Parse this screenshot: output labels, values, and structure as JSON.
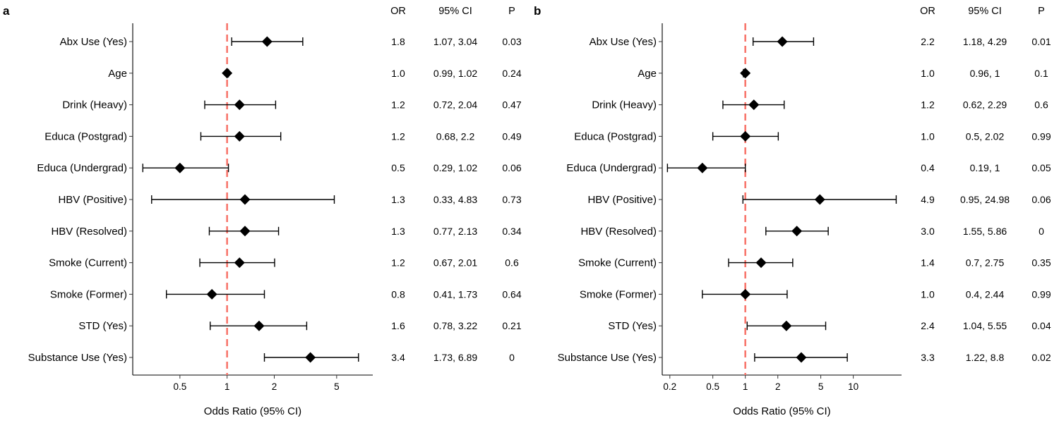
{
  "chart_data": [
    {
      "type": "forest",
      "panel_label": "a",
      "xlabel": "Odds Ratio (95% CI)",
      "xscale": "log",
      "xlim": [
        0.25,
        8.5
      ],
      "xticks": [
        0.5,
        1,
        2,
        5
      ],
      "xtick_labels": [
        "0.5",
        "1",
        "2",
        "5"
      ],
      "reference_line": 1,
      "reference_color": "#F8766D",
      "columns": {
        "or": "OR",
        "ci": "95% CI",
        "p": "P"
      },
      "rows": [
        {
          "label": "Abx Use (Yes)",
          "or": 1.8,
          "lo": 1.07,
          "hi": 3.04,
          "or_text": "1.8",
          "ci_text": "1.07, 3.04",
          "p_text": "0.03"
        },
        {
          "label": "Age",
          "or": 1.0,
          "lo": 0.99,
          "hi": 1.02,
          "or_text": "1.0",
          "ci_text": "0.99, 1.02",
          "p_text": "0.24"
        },
        {
          "label": "Drink (Heavy)",
          "or": 1.2,
          "lo": 0.72,
          "hi": 2.04,
          "or_text": "1.2",
          "ci_text": "0.72, 2.04",
          "p_text": "0.47"
        },
        {
          "label": "Educa (Postgrad)",
          "or": 1.2,
          "lo": 0.68,
          "hi": 2.2,
          "or_text": "1.2",
          "ci_text": "0.68, 2.2",
          "p_text": "0.49"
        },
        {
          "label": "Educa (Undergrad)",
          "or": 0.5,
          "lo": 0.29,
          "hi": 1.02,
          "or_text": "0.5",
          "ci_text": "0.29, 1.02",
          "p_text": "0.06"
        },
        {
          "label": "HBV (Positive)",
          "or": 1.3,
          "lo": 0.33,
          "hi": 4.83,
          "or_text": "1.3",
          "ci_text": "0.33, 4.83",
          "p_text": "0.73"
        },
        {
          "label": "HBV (Resolved)",
          "or": 1.3,
          "lo": 0.77,
          "hi": 2.13,
          "or_text": "1.3",
          "ci_text": "0.77, 2.13",
          "p_text": "0.34"
        },
        {
          "label": "Smoke (Current)",
          "or": 1.2,
          "lo": 0.67,
          "hi": 2.01,
          "or_text": "1.2",
          "ci_text": "0.67, 2.01",
          "p_text": "0.6"
        },
        {
          "label": "Smoke (Former)",
          "or": 0.8,
          "lo": 0.41,
          "hi": 1.73,
          "or_text": "0.8",
          "ci_text": "0.41, 1.73",
          "p_text": "0.64"
        },
        {
          "label": "STD (Yes)",
          "or": 1.6,
          "lo": 0.78,
          "hi": 3.22,
          "or_text": "1.6",
          "ci_text": "0.78, 3.22",
          "p_text": "0.21"
        },
        {
          "label": "Substance Use (Yes)",
          "or": 3.4,
          "lo": 1.73,
          "hi": 6.89,
          "or_text": "3.4",
          "ci_text": "1.73, 6.89",
          "p_text": "0"
        }
      ]
    },
    {
      "type": "forest",
      "panel_label": "b",
      "xlabel": "Odds Ratio (95% CI)",
      "xscale": "log",
      "xlim": [
        0.17,
        28
      ],
      "xticks": [
        0.2,
        0.5,
        1,
        2,
        5,
        10
      ],
      "xtick_labels": [
        "0.2",
        "0.5",
        "1",
        "2",
        "5",
        "10"
      ],
      "reference_line": 1,
      "reference_color": "#F8766D",
      "columns": {
        "or": "OR",
        "ci": "95% CI",
        "p": "P"
      },
      "rows": [
        {
          "label": "Abx Use (Yes)",
          "or": 2.2,
          "lo": 1.18,
          "hi": 4.29,
          "or_text": "2.2",
          "ci_text": "1.18, 4.29",
          "p_text": "0.01"
        },
        {
          "label": "Age",
          "or": 1.0,
          "lo": 0.96,
          "hi": 1.0,
          "or_text": "1.0",
          "ci_text": "0.96, 1",
          "p_text": "0.1"
        },
        {
          "label": "Drink (Heavy)",
          "or": 1.2,
          "lo": 0.62,
          "hi": 2.29,
          "or_text": "1.2",
          "ci_text": "0.62, 2.29",
          "p_text": "0.6"
        },
        {
          "label": "Educa (Postgrad)",
          "or": 1.0,
          "lo": 0.5,
          "hi": 2.02,
          "or_text": "1.0",
          "ci_text": "0.5, 2.02",
          "p_text": "0.99"
        },
        {
          "label": "Educa (Undergrad)",
          "or": 0.4,
          "lo": 0.19,
          "hi": 1.0,
          "or_text": "0.4",
          "ci_text": "0.19, 1",
          "p_text": "0.05"
        },
        {
          "label": "HBV (Positive)",
          "or": 4.9,
          "lo": 0.95,
          "hi": 24.98,
          "or_text": "4.9",
          "ci_text": "0.95, 24.98",
          "p_text": "0.06"
        },
        {
          "label": "HBV (Resolved)",
          "or": 3.0,
          "lo": 1.55,
          "hi": 5.86,
          "or_text": "3.0",
          "ci_text": "1.55, 5.86",
          "p_text": "0"
        },
        {
          "label": "Smoke (Current)",
          "or": 1.4,
          "lo": 0.7,
          "hi": 2.75,
          "or_text": "1.4",
          "ci_text": "0.7, 2.75",
          "p_text": "0.35"
        },
        {
          "label": "Smoke (Former)",
          "or": 1.0,
          "lo": 0.4,
          "hi": 2.44,
          "or_text": "1.0",
          "ci_text": "0.4, 2.44",
          "p_text": "0.99"
        },
        {
          "label": "STD (Yes)",
          "or": 2.4,
          "lo": 1.04,
          "hi": 5.55,
          "or_text": "2.4",
          "ci_text": "1.04, 5.55",
          "p_text": "0.04"
        },
        {
          "label": "Substance Use (Yes)",
          "or": 3.3,
          "lo": 1.22,
          "hi": 8.8,
          "or_text": "3.3",
          "ci_text": "1.22, 8.8",
          "p_text": "0.02"
        }
      ]
    }
  ]
}
